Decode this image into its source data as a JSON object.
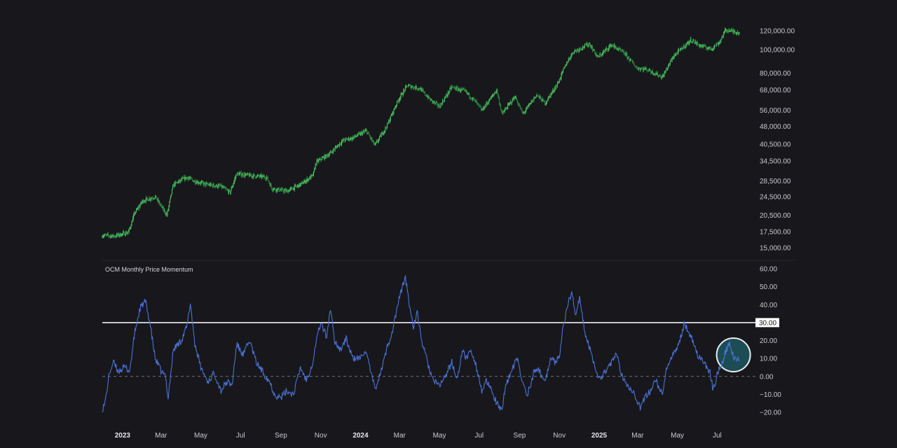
{
  "chart_data": [
    {
      "type": "candlestick",
      "scale": "log",
      "ylim": [
        14500,
        130000
      ],
      "yticks": [
        "120,000.00",
        "100,000.00",
        "80,000.00",
        "68,000.00",
        "56,000.00",
        "48,000.00",
        "40,500.00",
        "34,500.00",
        "28,500.00",
        "24,500.00",
        "20,500.00",
        "17,500.00",
        "15,000.00"
      ],
      "ytick_values": [
        120000,
        100000,
        80000,
        68000,
        56000,
        48000,
        40500,
        34500,
        28500,
        24500,
        20500,
        17500,
        15000
      ],
      "candle_color": "#3bbf55",
      "x_range": [
        "2022-12-01",
        "2025-08-04"
      ],
      "series": [
        {
          "x": "2022-12-01",
          "y": 16900
        },
        {
          "x": "2022-12-20",
          "y": 16800
        },
        {
          "x": "2023-01-10",
          "y": 17400
        },
        {
          "x": "2023-01-20",
          "y": 21000
        },
        {
          "x": "2023-02-01",
          "y": 23500
        },
        {
          "x": "2023-02-20",
          "y": 24500
        },
        {
          "x": "2023-03-10",
          "y": 20500
        },
        {
          "x": "2023-03-20",
          "y": 27500
        },
        {
          "x": "2023-04-10",
          "y": 29500
        },
        {
          "x": "2023-04-20",
          "y": 28500
        },
        {
          "x": "2023-05-10",
          "y": 27500
        },
        {
          "x": "2023-06-01",
          "y": 27000
        },
        {
          "x": "2023-06-15",
          "y": 25500
        },
        {
          "x": "2023-06-25",
          "y": 30500
        },
        {
          "x": "2023-07-15",
          "y": 30000
        },
        {
          "x": "2023-08-10",
          "y": 29500
        },
        {
          "x": "2023-08-18",
          "y": 26500
        },
        {
          "x": "2023-09-10",
          "y": 25800
        },
        {
          "x": "2023-10-01",
          "y": 27500
        },
        {
          "x": "2023-10-20",
          "y": 30000
        },
        {
          "x": "2023-10-25",
          "y": 34000
        },
        {
          "x": "2023-11-15",
          "y": 37000
        },
        {
          "x": "2023-12-05",
          "y": 42000
        },
        {
          "x": "2023-12-20",
          "y": 43000
        },
        {
          "x": "2024-01-10",
          "y": 46000
        },
        {
          "x": "2024-01-23",
          "y": 40000
        },
        {
          "x": "2024-02-10",
          "y": 48000
        },
        {
          "x": "2024-02-28",
          "y": 62000
        },
        {
          "x": "2024-03-13",
          "y": 71000
        },
        {
          "x": "2024-04-01",
          "y": 69000
        },
        {
          "x": "2024-04-17",
          "y": 62000
        },
        {
          "x": "2024-05-01",
          "y": 58000
        },
        {
          "x": "2024-05-20",
          "y": 70000
        },
        {
          "x": "2024-06-10",
          "y": 67000
        },
        {
          "x": "2024-06-25",
          "y": 61000
        },
        {
          "x": "2024-07-05",
          "y": 56000
        },
        {
          "x": "2024-07-28",
          "y": 68000
        },
        {
          "x": "2024-08-05",
          "y": 54000
        },
        {
          "x": "2024-08-25",
          "y": 64000
        },
        {
          "x": "2024-09-06",
          "y": 54000
        },
        {
          "x": "2024-09-27",
          "y": 65000
        },
        {
          "x": "2024-10-10",
          "y": 60000
        },
        {
          "x": "2024-10-29",
          "y": 72000
        },
        {
          "x": "2024-11-12",
          "y": 88000
        },
        {
          "x": "2024-11-22",
          "y": 98000
        },
        {
          "x": "2024-12-17",
          "y": 106000
        },
        {
          "x": "2024-12-30",
          "y": 93000
        },
        {
          "x": "2025-01-20",
          "y": 105000
        },
        {
          "x": "2025-02-10",
          "y": 96000
        },
        {
          "x": "2025-02-28",
          "y": 84000
        },
        {
          "x": "2025-03-15",
          "y": 83000
        },
        {
          "x": "2025-04-08",
          "y": 77000
        },
        {
          "x": "2025-04-25",
          "y": 94000
        },
        {
          "x": "2025-05-22",
          "y": 110000
        },
        {
          "x": "2025-06-05",
          "y": 104000
        },
        {
          "x": "2025-06-22",
          "y": 101000
        },
        {
          "x": "2025-07-05",
          "y": 108000
        },
        {
          "x": "2025-07-14",
          "y": 121000
        },
        {
          "x": "2025-08-04",
          "y": 118000
        }
      ]
    },
    {
      "type": "line",
      "title": "OCM Monthly Price Momentum",
      "ylim": [
        -20,
        60
      ],
      "yticks": [
        "60.00",
        "50.00",
        "40.00",
        "30.00",
        "20.00",
        "10.00",
        "0.00",
        "−10.00",
        "−20.00"
      ],
      "ytick_values": [
        60,
        50,
        40,
        30,
        20,
        10,
        0,
        -10,
        -20
      ],
      "reference_line": {
        "value": 30,
        "label": "30.00",
        "color": "#ffffff"
      },
      "zero_line": {
        "value": 0,
        "style": "dashed"
      },
      "highlight": {
        "x": "2025-07-26",
        "y": 12,
        "color": "#1f6f7a"
      },
      "line_color": "#4a74d6",
      "x_range": [
        "2022-12-01",
        "2025-08-04"
      ],
      "series": [
        {
          "x": "2022-12-01",
          "y": -18
        },
        {
          "x": "2022-12-05",
          "y": -15
        },
        {
          "x": "2022-12-12",
          "y": 2
        },
        {
          "x": "2022-12-18",
          "y": 8
        },
        {
          "x": "2022-12-25",
          "y": 3
        },
        {
          "x": "2023-01-05",
          "y": 5
        },
        {
          "x": "2023-01-12",
          "y": 3
        },
        {
          "x": "2023-01-20",
          "y": 25
        },
        {
          "x": "2023-01-28",
          "y": 38
        },
        {
          "x": "2023-02-05",
          "y": 42
        },
        {
          "x": "2023-02-12",
          "y": 30
        },
        {
          "x": "2023-02-20",
          "y": 10
        },
        {
          "x": "2023-03-01",
          "y": 3
        },
        {
          "x": "2023-03-08",
          "y": 0
        },
        {
          "x": "2023-03-12",
          "y": -12
        },
        {
          "x": "2023-03-20",
          "y": 15
        },
        {
          "x": "2023-04-01",
          "y": 20
        },
        {
          "x": "2023-04-10",
          "y": 28
        },
        {
          "x": "2023-04-15",
          "y": 41
        },
        {
          "x": "2023-04-22",
          "y": 18
        },
        {
          "x": "2023-05-01",
          "y": 5
        },
        {
          "x": "2023-05-12",
          "y": -3
        },
        {
          "x": "2023-05-22",
          "y": 2
        },
        {
          "x": "2023-06-01",
          "y": -8
        },
        {
          "x": "2023-06-10",
          "y": -3
        },
        {
          "x": "2023-06-18",
          "y": -5
        },
        {
          "x": "2023-06-25",
          "y": 18
        },
        {
          "x": "2023-07-05",
          "y": 12
        },
        {
          "x": "2023-07-15",
          "y": 20
        },
        {
          "x": "2023-07-25",
          "y": 8
        },
        {
          "x": "2023-08-05",
          "y": 2
        },
        {
          "x": "2023-08-15",
          "y": -3
        },
        {
          "x": "2023-08-22",
          "y": -10
        },
        {
          "x": "2023-09-01",
          "y": -12
        },
        {
          "x": "2023-09-10",
          "y": -8
        },
        {
          "x": "2023-09-20",
          "y": -10
        },
        {
          "x": "2023-10-01",
          "y": 5
        },
        {
          "x": "2023-10-10",
          "y": -2
        },
        {
          "x": "2023-10-20",
          "y": 8
        },
        {
          "x": "2023-10-25",
          "y": 20
        },
        {
          "x": "2023-11-01",
          "y": 30
        },
        {
          "x": "2023-11-10",
          "y": 22
        },
        {
          "x": "2023-11-16",
          "y": 38
        },
        {
          "x": "2023-11-22",
          "y": 20
        },
        {
          "x": "2023-12-01",
          "y": 15
        },
        {
          "x": "2023-12-10",
          "y": 21
        },
        {
          "x": "2023-12-20",
          "y": 10
        },
        {
          "x": "2024-01-01",
          "y": 10
        },
        {
          "x": "2024-01-08",
          "y": 15
        },
        {
          "x": "2024-01-15",
          "y": 5
        },
        {
          "x": "2024-01-23",
          "y": -7
        },
        {
          "x": "2024-02-01",
          "y": 2
        },
        {
          "x": "2024-02-10",
          "y": 15
        },
        {
          "x": "2024-02-20",
          "y": 27
        },
        {
          "x": "2024-02-26",
          "y": 38
        },
        {
          "x": "2024-03-05",
          "y": 50
        },
        {
          "x": "2024-03-10",
          "y": 55
        },
        {
          "x": "2024-03-16",
          "y": 40
        },
        {
          "x": "2024-03-22",
          "y": 28
        },
        {
          "x": "2024-03-28",
          "y": 35
        },
        {
          "x": "2024-04-05",
          "y": 18
        },
        {
          "x": "2024-04-15",
          "y": 5
        },
        {
          "x": "2024-04-22",
          "y": -3
        },
        {
          "x": "2024-05-01",
          "y": -5
        },
        {
          "x": "2024-05-10",
          "y": 0
        },
        {
          "x": "2024-05-20",
          "y": 8
        },
        {
          "x": "2024-05-28",
          "y": -2
        },
        {
          "x": "2024-06-05",
          "y": 14
        },
        {
          "x": "2024-06-12",
          "y": 10
        },
        {
          "x": "2024-06-18",
          "y": 15
        },
        {
          "x": "2024-06-25",
          "y": 8
        },
        {
          "x": "2024-07-05",
          "y": -8
        },
        {
          "x": "2024-07-12",
          "y": -3
        },
        {
          "x": "2024-07-20",
          "y": -8
        },
        {
          "x": "2024-07-28",
          "y": -15
        },
        {
          "x": "2024-08-05",
          "y": -20
        },
        {
          "x": "2024-08-10",
          "y": -5
        },
        {
          "x": "2024-08-20",
          "y": 3
        },
        {
          "x": "2024-08-28",
          "y": 10
        },
        {
          "x": "2024-09-06",
          "y": -4
        },
        {
          "x": "2024-09-12",
          "y": -10
        },
        {
          "x": "2024-09-18",
          "y": -5
        },
        {
          "x": "2024-09-25",
          "y": 5
        },
        {
          "x": "2024-10-01",
          "y": 3
        },
        {
          "x": "2024-10-10",
          "y": -3
        },
        {
          "x": "2024-10-18",
          "y": 10
        },
        {
          "x": "2024-10-25",
          "y": 8
        },
        {
          "x": "2024-11-01",
          "y": 12
        },
        {
          "x": "2024-11-08",
          "y": 30
        },
        {
          "x": "2024-11-14",
          "y": 40
        },
        {
          "x": "2024-11-20",
          "y": 47
        },
        {
          "x": "2024-11-26",
          "y": 35
        },
        {
          "x": "2024-12-02",
          "y": 43
        },
        {
          "x": "2024-12-10",
          "y": 25
        },
        {
          "x": "2024-12-20",
          "y": 13
        },
        {
          "x": "2025-01-01",
          "y": -2
        },
        {
          "x": "2025-01-10",
          "y": 3
        },
        {
          "x": "2025-01-20",
          "y": 8
        },
        {
          "x": "2025-01-28",
          "y": 12
        },
        {
          "x": "2025-02-05",
          "y": 0
        },
        {
          "x": "2025-02-15",
          "y": -5
        },
        {
          "x": "2025-02-25",
          "y": -10
        },
        {
          "x": "2025-03-05",
          "y": -18
        },
        {
          "x": "2025-03-12",
          "y": -12
        },
        {
          "x": "2025-03-20",
          "y": -8
        },
        {
          "x": "2025-03-28",
          "y": -2
        },
        {
          "x": "2025-04-08",
          "y": -10
        },
        {
          "x": "2025-04-15",
          "y": 5
        },
        {
          "x": "2025-04-22",
          "y": 10
        },
        {
          "x": "2025-04-30",
          "y": 15
        },
        {
          "x": "2025-05-06",
          "y": 22
        },
        {
          "x": "2025-05-12",
          "y": 30
        },
        {
          "x": "2025-05-18",
          "y": 25
        },
        {
          "x": "2025-05-25",
          "y": 20
        },
        {
          "x": "2025-06-01",
          "y": 12
        },
        {
          "x": "2025-06-10",
          "y": 8
        },
        {
          "x": "2025-06-20",
          "y": 2
        },
        {
          "x": "2025-06-25",
          "y": -8
        },
        {
          "x": "2025-07-02",
          "y": 3
        },
        {
          "x": "2025-07-08",
          "y": 6
        },
        {
          "x": "2025-07-14",
          "y": 14
        },
        {
          "x": "2025-07-20",
          "y": 18
        },
        {
          "x": "2025-07-27",
          "y": 10
        },
        {
          "x": "2025-08-04",
          "y": 9
        }
      ]
    }
  ],
  "x_axis": {
    "ticks": [
      {
        "date": "2023-01-01",
        "label": "2023",
        "bold": true
      },
      {
        "date": "2023-03-01",
        "label": "Mar"
      },
      {
        "date": "2023-05-01",
        "label": "May"
      },
      {
        "date": "2023-07-01",
        "label": "Jul"
      },
      {
        "date": "2023-09-01",
        "label": "Sep"
      },
      {
        "date": "2023-11-01",
        "label": "Nov"
      },
      {
        "date": "2024-01-01",
        "label": "2024",
        "bold": true
      },
      {
        "date": "2024-03-01",
        "label": "Mar"
      },
      {
        "date": "2024-05-01",
        "label": "May"
      },
      {
        "date": "2024-07-01",
        "label": "Jul"
      },
      {
        "date": "2024-09-01",
        "label": "Sep"
      },
      {
        "date": "2024-11-01",
        "label": "Nov"
      },
      {
        "date": "2025-01-01",
        "label": "2025",
        "bold": true
      },
      {
        "date": "2025-03-01",
        "label": "Mar"
      },
      {
        "date": "2025-05-01",
        "label": "May"
      },
      {
        "date": "2025-07-01",
        "label": "Jul"
      }
    ]
  },
  "colors": {
    "background": "#18171c",
    "grid_divider": "#2a2a30",
    "axis_text": "#c9c9cf"
  }
}
